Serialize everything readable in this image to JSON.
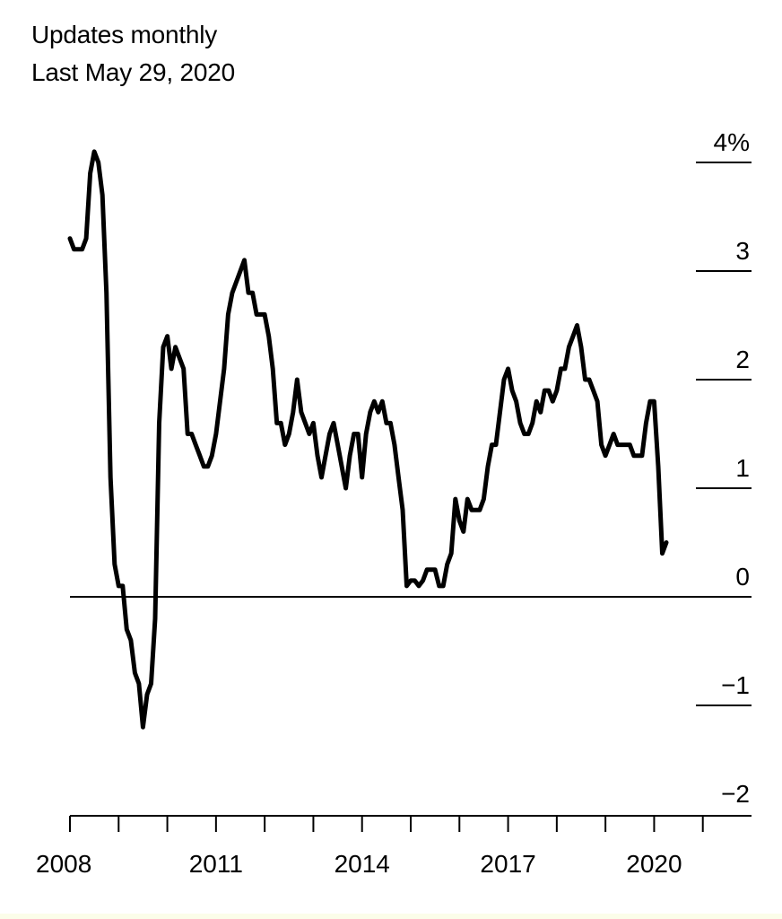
{
  "header": {
    "line1": "Updates monthly",
    "line2": "Last May 29, 2020"
  },
  "chart_data": {
    "type": "line",
    "title": "",
    "xlabel": "",
    "ylabel": "",
    "unit": "%",
    "x_ticks": [
      "2008",
      "2011",
      "2014",
      "2017",
      "2020"
    ],
    "y_ticks": [
      {
        "value": 4,
        "label": "4%"
      },
      {
        "value": 3,
        "label": "3"
      },
      {
        "value": 2,
        "label": "2"
      },
      {
        "value": 1,
        "label": "1"
      },
      {
        "value": 0,
        "label": "0"
      },
      {
        "value": -1,
        "label": "−1"
      },
      {
        "value": -2,
        "label": "−2"
      }
    ],
    "ylim": [
      -2,
      4
    ],
    "xlim": [
      "2008-01",
      "2021-12"
    ],
    "grid": false,
    "series": [
      {
        "color": "#000000",
        "x": [
          "2008-01",
          "2008-02",
          "2008-03",
          "2008-04",
          "2008-05",
          "2008-06",
          "2008-07",
          "2008-08",
          "2008-09",
          "2008-10",
          "2008-11",
          "2008-12",
          "2009-01",
          "2009-02",
          "2009-03",
          "2009-04",
          "2009-05",
          "2009-06",
          "2009-07",
          "2009-08",
          "2009-09",
          "2009-10",
          "2009-11",
          "2009-12",
          "2010-01",
          "2010-02",
          "2010-03",
          "2010-04",
          "2010-05",
          "2010-06",
          "2010-07",
          "2010-08",
          "2010-09",
          "2010-10",
          "2010-11",
          "2010-12",
          "2011-01",
          "2011-02",
          "2011-03",
          "2011-04",
          "2011-05",
          "2011-06",
          "2011-07",
          "2011-08",
          "2011-09",
          "2011-10",
          "2011-11",
          "2011-12",
          "2012-01",
          "2012-02",
          "2012-03",
          "2012-04",
          "2012-05",
          "2012-06",
          "2012-07",
          "2012-08",
          "2012-09",
          "2012-10",
          "2012-11",
          "2012-12",
          "2013-01",
          "2013-02",
          "2013-03",
          "2013-04",
          "2013-05",
          "2013-06",
          "2013-07",
          "2013-08",
          "2013-09",
          "2013-10",
          "2013-11",
          "2013-12",
          "2014-01",
          "2014-02",
          "2014-03",
          "2014-04",
          "2014-05",
          "2014-06",
          "2014-07",
          "2014-08",
          "2014-09",
          "2014-10",
          "2014-11",
          "2014-12",
          "2015-01",
          "2015-02",
          "2015-03",
          "2015-04",
          "2015-05",
          "2015-06",
          "2015-07",
          "2015-08",
          "2015-09",
          "2015-10",
          "2015-11",
          "2015-12",
          "2016-01",
          "2016-02",
          "2016-03",
          "2016-04",
          "2016-05",
          "2016-06",
          "2016-07",
          "2016-08",
          "2016-09",
          "2016-10",
          "2016-11",
          "2016-12",
          "2017-01",
          "2017-02",
          "2017-03",
          "2017-04",
          "2017-05",
          "2017-06",
          "2017-07",
          "2017-08",
          "2017-09",
          "2017-10",
          "2017-11",
          "2017-12",
          "2018-01",
          "2018-02",
          "2018-03",
          "2018-04",
          "2018-05",
          "2018-06",
          "2018-07",
          "2018-08",
          "2018-09",
          "2018-10",
          "2018-11",
          "2018-12",
          "2019-01",
          "2019-02",
          "2019-03",
          "2019-04",
          "2019-05",
          "2019-06",
          "2019-07",
          "2019-08",
          "2019-09",
          "2019-10",
          "2019-11",
          "2019-12",
          "2020-01",
          "2020-02",
          "2020-03",
          "2020-04"
        ],
        "values": [
          3.3,
          3.2,
          3.2,
          3.2,
          3.3,
          3.9,
          4.1,
          4.0,
          3.7,
          2.8,
          1.1,
          0.3,
          0.1,
          0.1,
          -0.3,
          -0.4,
          -0.7,
          -0.8,
          -1.2,
          -0.9,
          -0.8,
          -0.2,
          1.6,
          2.3,
          2.4,
          2.1,
          2.3,
          2.2,
          2.1,
          1.5,
          1.5,
          1.4,
          1.3,
          1.2,
          1.2,
          1.3,
          1.5,
          1.8,
          2.1,
          2.6,
          2.8,
          2.9,
          3.0,
          3.1,
          2.8,
          2.8,
          2.6,
          2.6,
          2.6,
          2.4,
          2.1,
          1.6,
          1.6,
          1.4,
          1.5,
          1.7,
          2.0,
          1.7,
          1.6,
          1.5,
          1.6,
          1.3,
          1.1,
          1.3,
          1.5,
          1.6,
          1.4,
          1.2,
          1.0,
          1.3,
          1.5,
          1.5,
          1.1,
          1.5,
          1.7,
          1.8,
          1.7,
          1.8,
          1.6,
          1.6,
          1.4,
          1.1,
          0.8,
          0.1,
          0.15,
          0.15,
          0.1,
          0.15,
          0.25,
          0.25,
          0.25,
          0.1,
          0.1,
          0.3,
          0.4,
          0.9,
          0.7,
          0.6,
          0.9,
          0.8,
          0.8,
          0.8,
          0.9,
          1.2,
          1.4,
          1.4,
          1.7,
          2.0,
          2.1,
          1.9,
          1.8,
          1.6,
          1.5,
          1.5,
          1.6,
          1.8,
          1.7,
          1.9,
          1.9,
          1.8,
          1.9,
          2.1,
          2.1,
          2.3,
          2.4,
          2.5,
          2.3,
          2.0,
          2.0,
          1.9,
          1.8,
          1.4,
          1.3,
          1.4,
          1.5,
          1.4,
          1.4,
          1.4,
          1.4,
          1.3,
          1.3,
          1.3,
          1.6,
          1.8,
          1.8,
          1.2,
          0.4,
          0.5
        ]
      }
    ]
  }
}
